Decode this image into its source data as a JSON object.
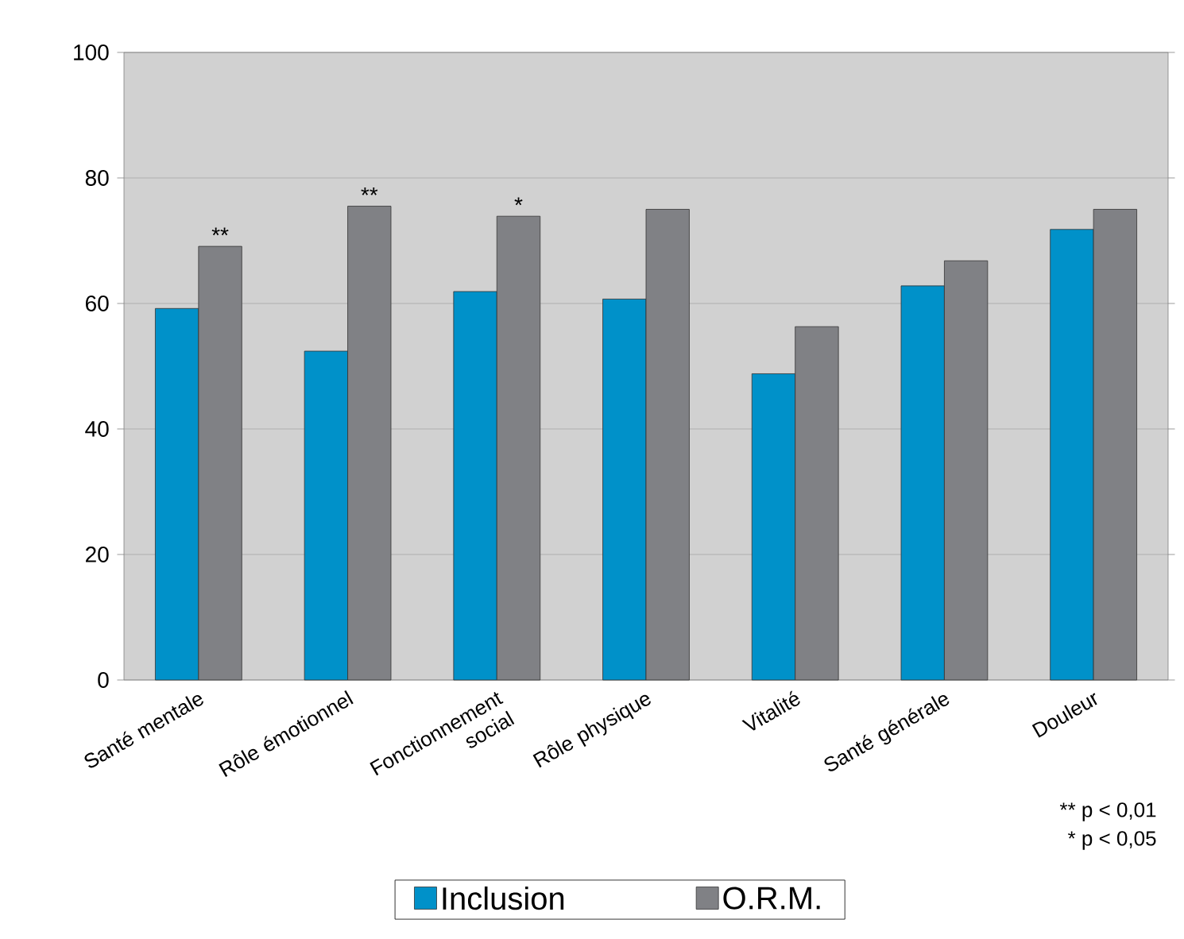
{
  "chart_data": {
    "type": "bar",
    "categories": [
      "Santé mentale",
      "Rôle émotionnel",
      "Fonctionnement social",
      "Rôle physique",
      "Vitalité",
      "Santé générale",
      "Douleur"
    ],
    "series": [
      {
        "name": "Inclusion",
        "color": "#0091c9",
        "values": [
          59.2,
          52.4,
          61.9,
          60.7,
          48.8,
          62.8,
          71.8
        ]
      },
      {
        "name": "O.R.M.",
        "color": "#808185",
        "values": [
          69.1,
          75.5,
          73.9,
          75.0,
          56.3,
          66.8,
          75.0
        ]
      }
    ],
    "ylim": [
      0,
      100
    ],
    "yticks": [
      0,
      20,
      40,
      60,
      80,
      100
    ],
    "grid": "y",
    "legend": "bottom",
    "annotations": [
      {
        "text": "**",
        "x": "Santé mentale",
        "y": 69.1
      },
      {
        "text": "**",
        "x": "Rôle émotionnel",
        "y": 75.5
      },
      {
        "text": "*",
        "x": "Fonctionnement social",
        "y": 73.9
      },
      "** p < 0,01",
      "* p < 0,05"
    ]
  }
}
